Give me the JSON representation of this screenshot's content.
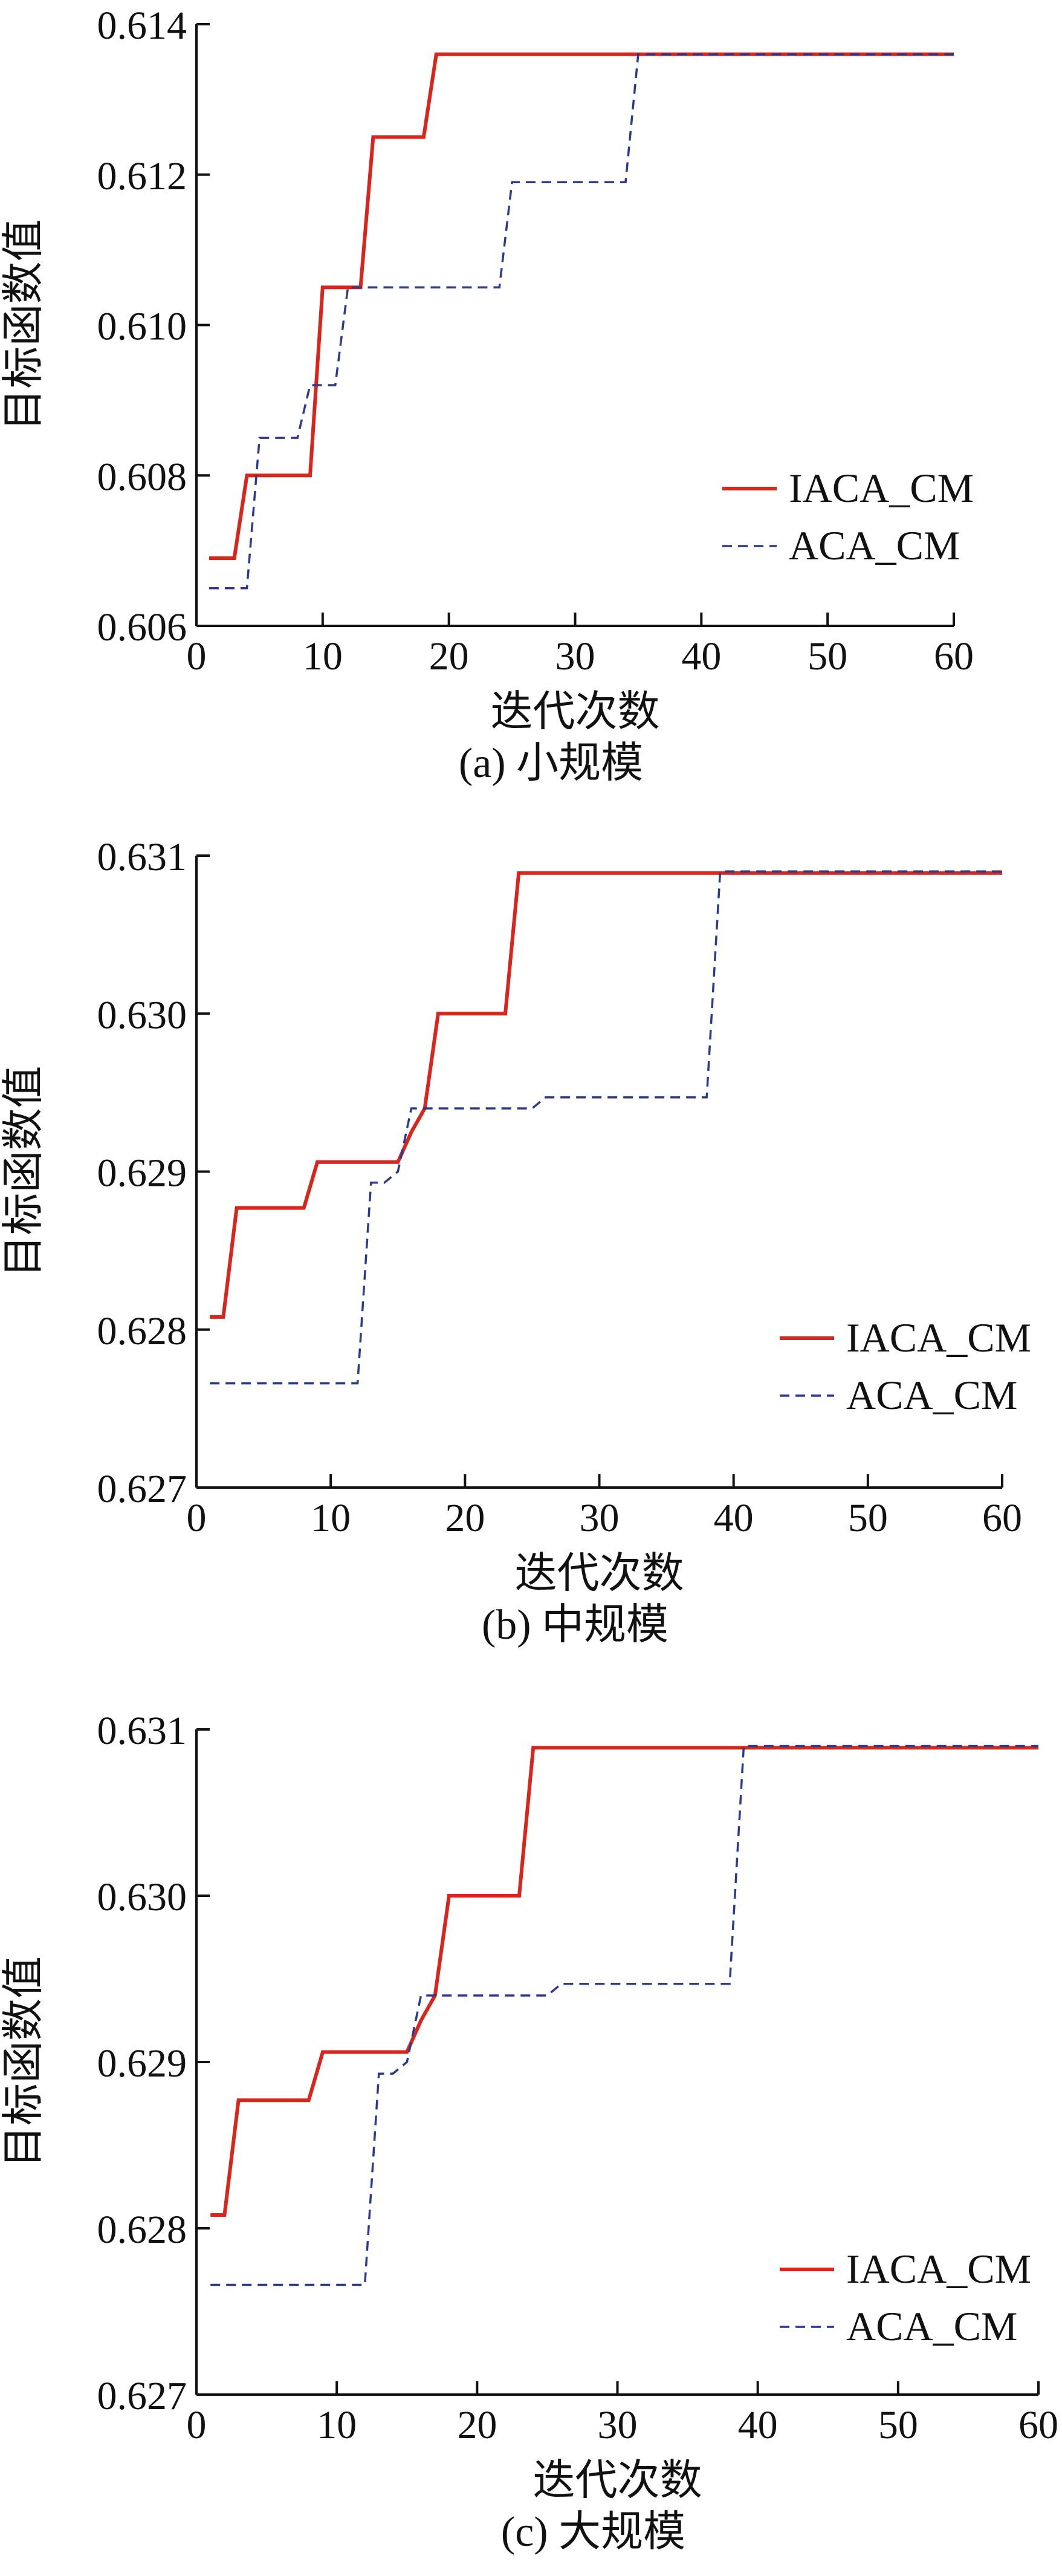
{
  "colors": {
    "iaca": "#d9261c",
    "aca": "#2b3a8f",
    "axis": "#111111"
  },
  "chart_data": [
    {
      "type": "line",
      "caption": "(a) 小规模",
      "xlabel": "迭代次数",
      "ylabel": "目标函数值",
      "xlim": [
        0,
        60
      ],
      "ylim": [
        0.606,
        0.614
      ],
      "xticks": [
        0,
        10,
        20,
        30,
        40,
        50,
        60
      ],
      "yticks": [
        0.606,
        0.608,
        0.61,
        0.612,
        0.614
      ],
      "ytick_labels": [
        "0.606",
        "0.608",
        "0.610",
        "0.612",
        "0.614"
      ],
      "grid": false,
      "legend": "right",
      "series": [
        {
          "name": "IACA_CM",
          "style": "solid",
          "x": [
            1,
            3,
            4,
            9,
            10,
            13,
            14,
            18,
            19,
            60
          ],
          "y": [
            0.6069,
            0.6069,
            0.608,
            0.608,
            0.6105,
            0.6105,
            0.6125,
            0.6125,
            0.6136,
            0.6136
          ]
        },
        {
          "name": "ACA_CM",
          "style": "dashed",
          "x": [
            1,
            4,
            5,
            8,
            9,
            11,
            12,
            24,
            25,
            34,
            35,
            60
          ],
          "y": [
            0.6065,
            0.6065,
            0.6085,
            0.6085,
            0.6092,
            0.6092,
            0.6105,
            0.6105,
            0.6119,
            0.6119,
            0.6136,
            0.6136
          ]
        }
      ]
    },
    {
      "type": "line",
      "caption": "(b) 中规模",
      "xlabel": "迭代次数",
      "ylabel": "目标函数值",
      "xlim": [
        0,
        60
      ],
      "ylim": [
        0.627,
        0.631
      ],
      "xticks": [
        0,
        10,
        20,
        30,
        40,
        50,
        60
      ],
      "yticks": [
        0.627,
        0.628,
        0.629,
        0.63,
        0.631
      ],
      "ytick_labels": [
        "0.627",
        "0.628",
        "0.629",
        "0.630",
        "0.631"
      ],
      "grid": false,
      "legend": "bottom-right",
      "series": [
        {
          "name": "IACA_CM",
          "style": "solid",
          "x": [
            1,
            2,
            3,
            8,
            9,
            15,
            16,
            17,
            18,
            23,
            24,
            60
          ],
          "y": [
            0.62808,
            0.62808,
            0.62877,
            0.62877,
            0.62906,
            0.62906,
            0.62925,
            0.6294,
            0.63,
            0.63,
            0.63089,
            0.63089
          ]
        },
        {
          "name": "ACA_CM",
          "style": "dashed",
          "x": [
            1,
            12,
            13,
            14,
            15,
            16,
            17,
            25,
            26,
            38,
            39,
            60
          ],
          "y": [
            0.62766,
            0.62766,
            0.62893,
            0.62893,
            0.629,
            0.6294,
            0.6294,
            0.6294,
            0.62947,
            0.62947,
            0.6309,
            0.6309
          ]
        }
      ]
    },
    {
      "type": "line",
      "caption": "(c) 大规模",
      "xlabel": "迭代次数",
      "ylabel": "目标函数值",
      "xlim": [
        0,
        60
      ],
      "ylim": [
        0.627,
        0.631
      ],
      "xticks": [
        0,
        10,
        20,
        30,
        40,
        50,
        60
      ],
      "yticks": [
        0.627,
        0.628,
        0.629,
        0.63,
        0.631
      ],
      "ytick_labels": [
        "0.627",
        "0.628",
        "0.629",
        "0.630",
        "0.631"
      ],
      "grid": false,
      "legend": "bottom-right",
      "series": [
        {
          "name": "IACA_CM",
          "style": "solid",
          "x": [
            1,
            2,
            3,
            8,
            9,
            15,
            16,
            17,
            18,
            23,
            24,
            60
          ],
          "y": [
            0.62808,
            0.62808,
            0.62877,
            0.62877,
            0.62906,
            0.62906,
            0.62925,
            0.6294,
            0.63,
            0.63,
            0.63089,
            0.63089
          ]
        },
        {
          "name": "ACA_CM",
          "style": "dashed",
          "x": [
            1,
            12,
            13,
            14,
            15,
            16,
            17,
            25,
            26,
            38,
            39,
            60
          ],
          "y": [
            0.62766,
            0.62766,
            0.62893,
            0.62893,
            0.629,
            0.6294,
            0.6294,
            0.6294,
            0.62947,
            0.62947,
            0.6309,
            0.6309
          ]
        }
      ]
    }
  ]
}
